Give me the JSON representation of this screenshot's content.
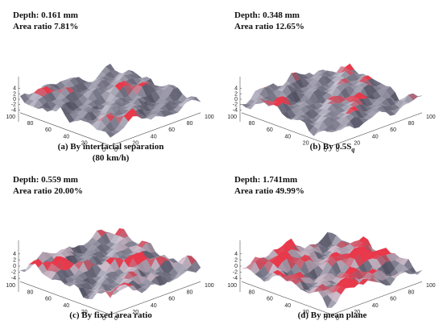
{
  "panels": [
    {
      "id": "a",
      "annotation": {
        "depth": "Depth: 0.161 mm",
        "area": "Area ratio 7.81%"
      },
      "caption": [
        "(a) By interfacial separation",
        "(80 km/h)"
      ],
      "red_level": 0.12
    },
    {
      "id": "b",
      "annotation": {
        "depth": "Depth: 0.348 mm",
        "area": "Area ratio 12.65%"
      },
      "caption": [
        "(b) By 0.5S",
        ""
      ],
      "caption_sub": "q",
      "red_level": 0.22
    },
    {
      "id": "c",
      "annotation": {
        "depth": "Depth: 0.559 mm",
        "area": "Area ratio 20.00%"
      },
      "caption": [
        "(c) By fixed area ratio",
        ""
      ],
      "red_level": 0.35
    },
    {
      "id": "d",
      "annotation": {
        "depth": "Depth: 1.741mm",
        "area": "Area ratio 49.99%"
      },
      "caption": [
        "(d) By mean plane",
        ""
      ],
      "red_level": 0.65
    }
  ],
  "axes": {
    "z_ticks": [
      "4",
      "2",
      "0",
      "-2",
      "-4"
    ],
    "left_ticks": [
      "100",
      "80",
      "60",
      "40",
      "20",
      "0"
    ],
    "right_ticks": [
      "0",
      "20",
      "40",
      "60",
      "80",
      "100"
    ]
  },
  "colors": {
    "surface_low": "#4a4a5c",
    "surface_high": "#c9c6d4",
    "contact": "#e8384a"
  }
}
